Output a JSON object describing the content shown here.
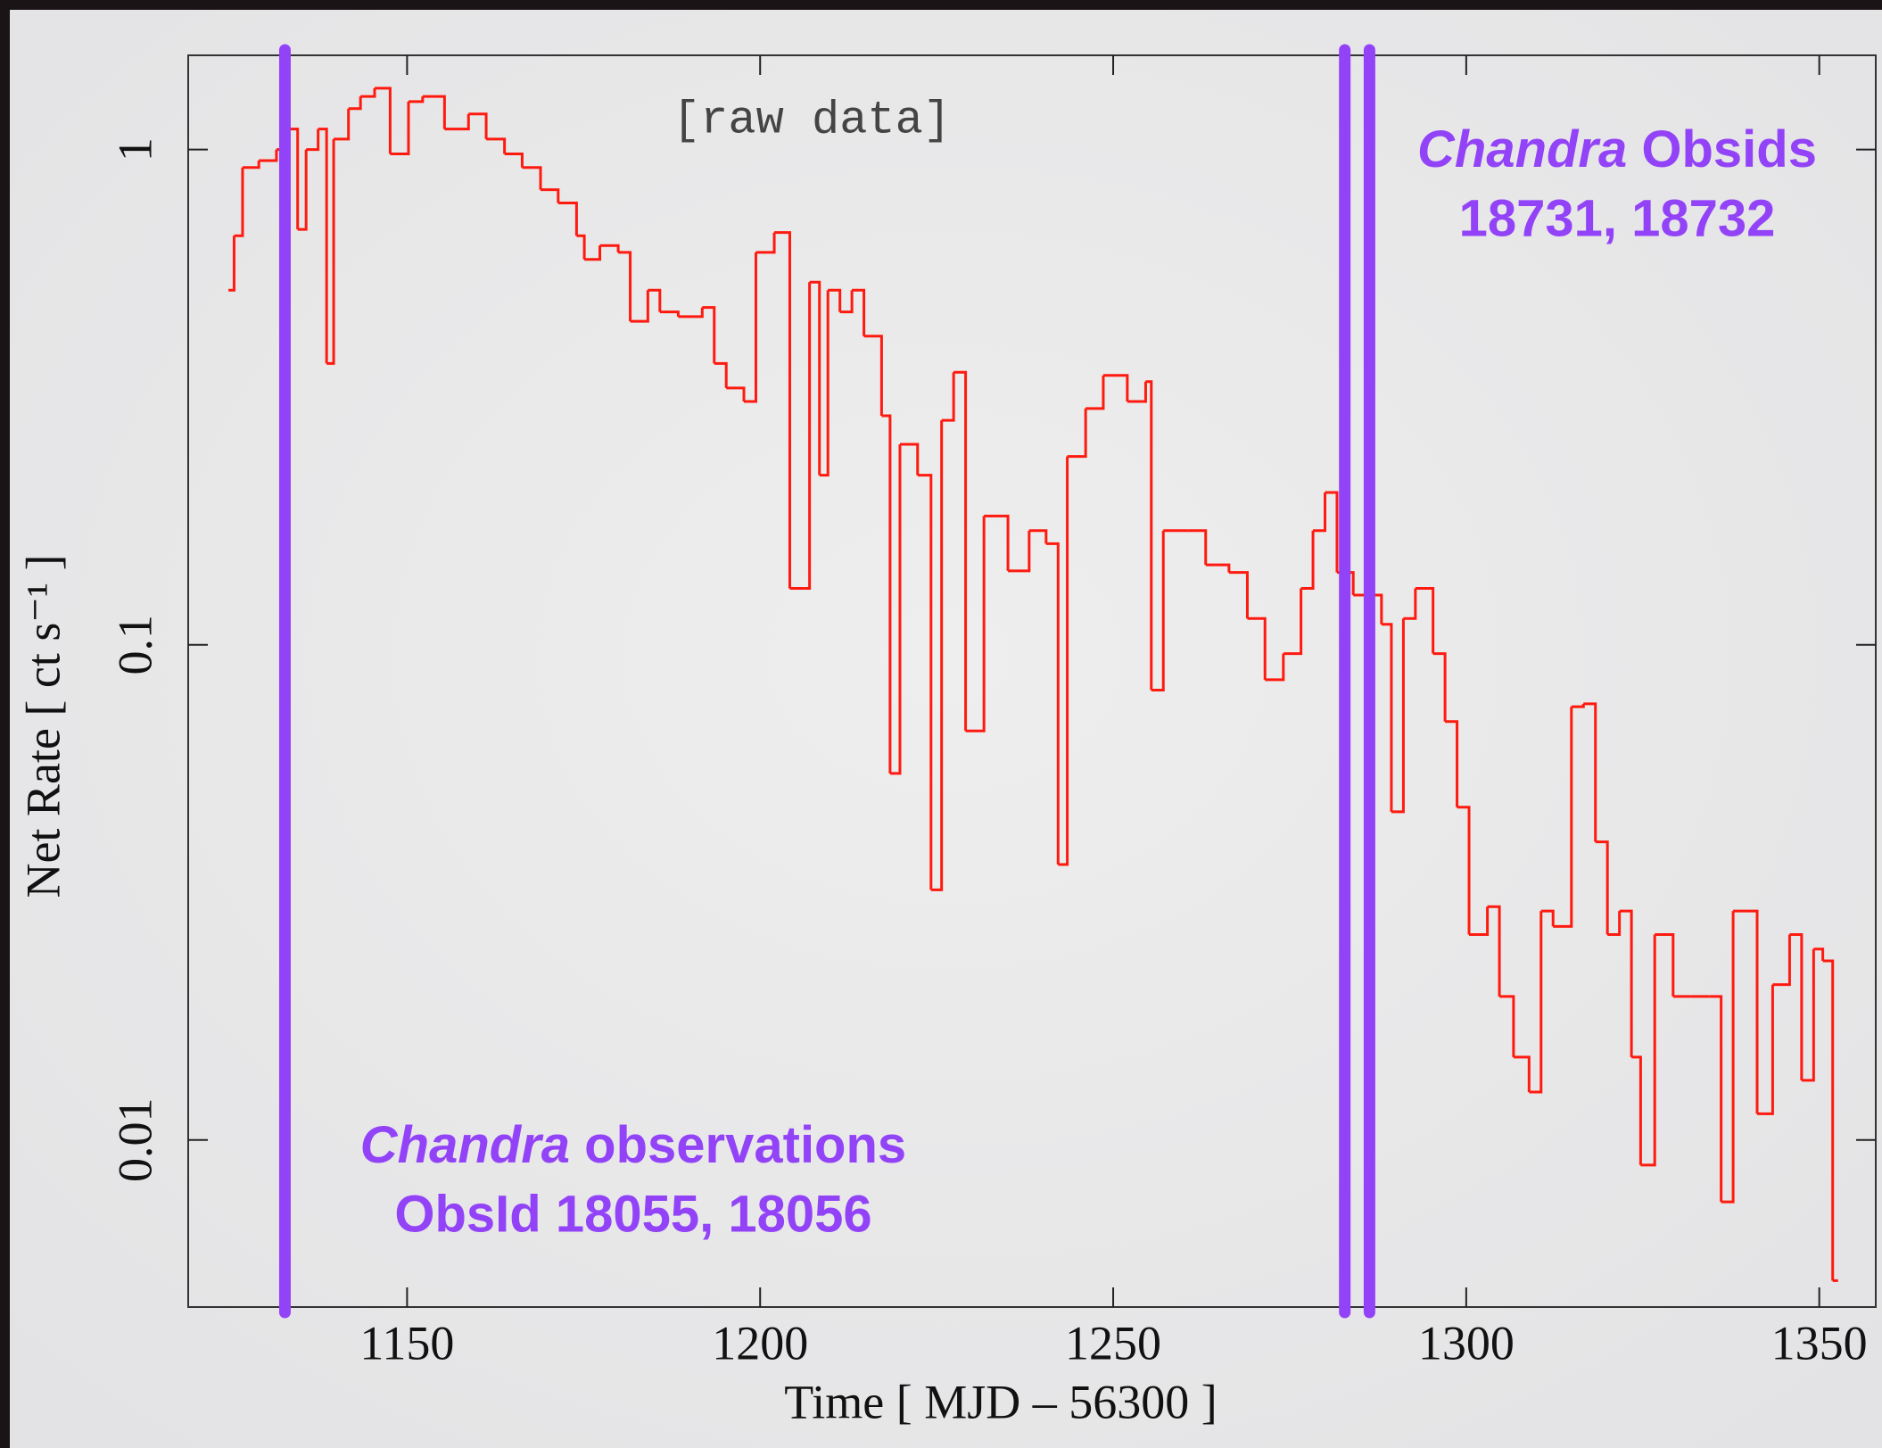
{
  "chart_data": {
    "type": "step",
    "xlabel": "Time [ MJD – 56300 ]",
    "ylabel": "Net Rate [ ct s⁻¹ ]",
    "log_y": true,
    "xlim": [
      1119,
      1358
    ],
    "ylim": [
      0.0046,
      1.55
    ],
    "xticks": [
      1150,
      1200,
      1250,
      1300,
      1350
    ],
    "yticks": [
      0.01,
      0.1,
      1
    ],
    "x": [
      1124.7,
      1125.5,
      1126.7,
      1129,
      1131.5,
      1133.2,
      1134.5,
      1135.7,
      1137.4,
      1138.6,
      1139.6,
      1141.7,
      1143.4,
      1145.4,
      1147.6,
      1150.2,
      1152.2,
      1155.3,
      1158.7,
      1161.2,
      1163.8,
      1166.3,
      1168.9,
      1171.4,
      1174,
      1175.1,
      1177.3,
      1179.9,
      1181.6,
      1184.1,
      1185.8,
      1188.4,
      1191.8,
      1193.5,
      1195.2,
      1197.7,
      1199.4,
      1202,
      1204.2,
      1206.2,
      1207,
      1208.4,
      1209.6,
      1211.3,
      1213,
      1214.7,
      1217.2,
      1218.4,
      1219.8,
      1222.3,
      1224.2,
      1225.7,
      1227.4,
      1229.1,
      1231.7,
      1235.1,
      1238.1,
      1240.5,
      1242.2,
      1243.5,
      1246.1,
      1248.6,
      1252,
      1254.6,
      1255.4,
      1257.1,
      1260.5,
      1263.1,
      1266.4,
      1269,
      1271.5,
      1274.1,
      1276.6,
      1278.3,
      1280,
      1281.7,
      1284,
      1286,
      1288,
      1289.4,
      1291.1,
      1292.8,
      1295.3,
      1297,
      1298.7,
      1300.4,
      1303,
      1304.7,
      1306.7,
      1308.9,
      1310.6,
      1312.3,
      1314.9,
      1316.6,
      1318.3,
      1320,
      1321.7,
      1323.4,
      1324.7,
      1326.7,
      1329.3,
      1331.8,
      1334.4,
      1336.1,
      1337.8,
      1341.2,
      1343.4,
      1345.8,
      1347.5,
      1349.2,
      1350.5,
      1351.9
    ],
    "series": [
      {
        "color": "#ff1a0f",
        "values": [
          0.52,
          0.67,
          0.92,
          0.95,
          1.0,
          1.1,
          0.69,
          1.0,
          1.1,
          0.37,
          1.05,
          1.21,
          1.28,
          1.33,
          0.98,
          1.25,
          1.28,
          1.1,
          1.18,
          1.05,
          0.98,
          0.92,
          0.83,
          0.78,
          0.67,
          0.6,
          0.64,
          0.62,
          0.45,
          0.52,
          0.47,
          0.46,
          0.48,
          0.37,
          0.33,
          0.31,
          0.62,
          0.68,
          0.13,
          0.13,
          0.54,
          0.22,
          0.52,
          0.47,
          0.52,
          0.42,
          0.29,
          0.055,
          0.254,
          0.22,
          0.032,
          0.284,
          0.355,
          0.067,
          0.182,
          0.141,
          0.17,
          0.16,
          0.036,
          0.24,
          0.3,
          0.35,
          0.31,
          0.34,
          0.081,
          0.17,
          0.17,
          0.145,
          0.14,
          0.113,
          0.085,
          0.096,
          0.13,
          0.17,
          0.203,
          0.14,
          0.126,
          0.126,
          0.11,
          0.046,
          0.113,
          0.13,
          0.096,
          0.07,
          0.047,
          0.026,
          0.0296,
          0.0195,
          0.0147,
          0.0125,
          0.029,
          0.027,
          0.075,
          0.076,
          0.04,
          0.026,
          0.029,
          0.0147,
          0.0089,
          0.026,
          0.0195,
          0.0195,
          0.0195,
          0.0075,
          0.029,
          0.0113,
          0.0206,
          0.026,
          0.0132,
          0.0243,
          0.023,
          0.0052
        ]
      }
    ],
    "vlines": [
      {
        "x": 1132.7,
        "color": "#9343f7"
      },
      {
        "x": 1282.8,
        "color": "#9343f7"
      },
      {
        "x": 1286.3,
        "color": "#9343f7"
      }
    ],
    "annotations": [
      {
        "text": "[raw data]"
      },
      {
        "italic": "Chandra",
        "text": " observations",
        "line2": "ObsId 18055, 18056"
      },
      {
        "italic": "Chandra",
        "text": " Obsids",
        "line2": "18731, 18732"
      }
    ]
  }
}
